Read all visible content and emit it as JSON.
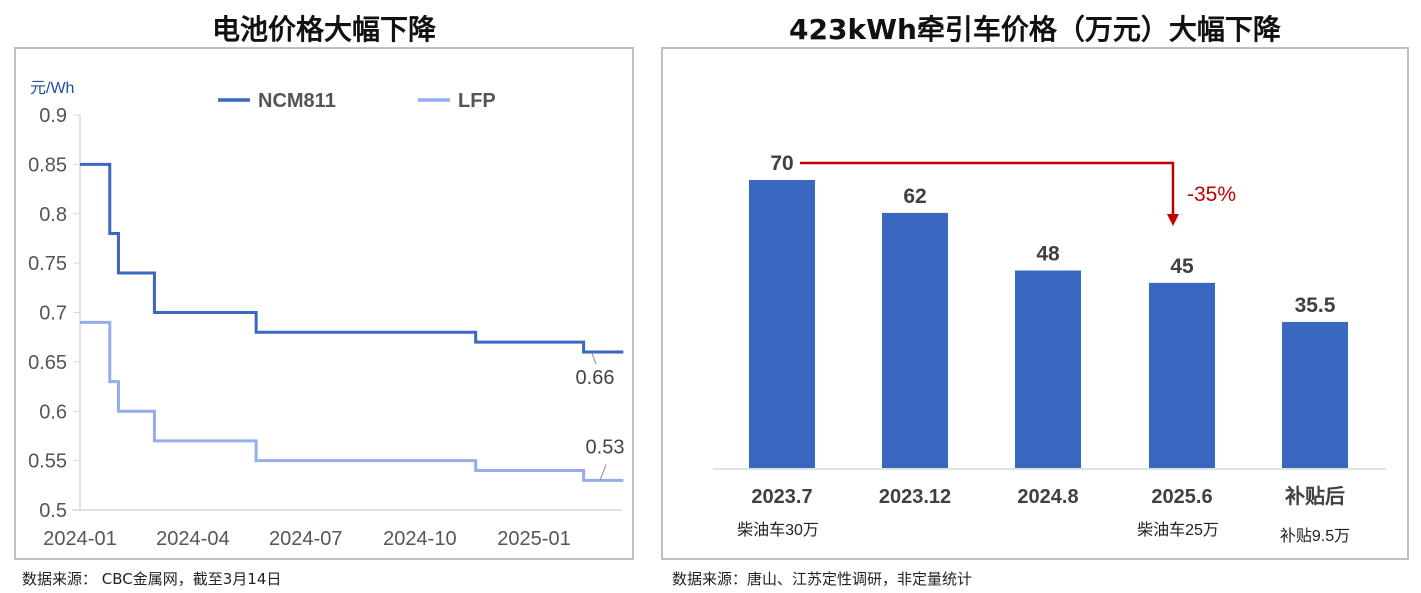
{
  "left": {
    "title": "电池价格大幅下降",
    "source": "数据来源： CBC金属网，截至3月14日"
  },
  "right": {
    "title": "423kWh牵引车价格（万元）大幅下降",
    "source": "数据来源：唐山、江苏定性调研，非定量统计"
  },
  "chart_data": [
    {
      "type": "line",
      "step": true,
      "ylabel": "元/Wh",
      "ylim": [
        0.5,
        0.9
      ],
      "yticks": [
        "0.9",
        "0.85",
        "0.8",
        "0.75",
        "0.7",
        "0.65",
        "0.6",
        "0.55",
        "0.5"
      ],
      "xticks": [
        "2024-01",
        "2024-04",
        "2024-07",
        "2024-10",
        "2025-01"
      ],
      "legend": "top",
      "colors": {
        "NCM811": "#3a67c0",
        "LFP": "#94adeb"
      },
      "series": [
        {
          "name": "NCM811",
          "points": [
            [
              "2024-01-01",
              0.85
            ],
            [
              "2024-01-25",
              0.78
            ],
            [
              "2024-02-01",
              0.74
            ],
            [
              "2024-03-01",
              0.7
            ],
            [
              "2024-05-22",
              0.68
            ],
            [
              "2024-11-15",
              0.67
            ],
            [
              "2025-02-10",
              0.66
            ],
            [
              "2025-03-14",
              0.66
            ]
          ],
          "end_label": "0.66"
        },
        {
          "name": "LFP",
          "points": [
            [
              "2024-01-01",
              0.69
            ],
            [
              "2024-01-25",
              0.63
            ],
            [
              "2024-02-01",
              0.6
            ],
            [
              "2024-03-01",
              0.57
            ],
            [
              "2024-05-22",
              0.55
            ],
            [
              "2024-11-15",
              0.54
            ],
            [
              "2025-02-10",
              0.53
            ],
            [
              "2025-03-14",
              0.53
            ]
          ],
          "end_label": "0.53"
        }
      ]
    },
    {
      "type": "bar",
      "title": "423kWh牵引车价格（万元）大幅下降",
      "categories": [
        "2023.7",
        "2023.12",
        "2024.8",
        "2025.6",
        "补贴后"
      ],
      "sublabels": [
        "柴油车30万",
        "",
        "",
        "柴油车25万",
        "补贴9.5万"
      ],
      "values": [
        70,
        62,
        48,
        45,
        35.5
      ],
      "value_labels": [
        "70",
        "62",
        "48",
        "45",
        "35.5"
      ],
      "bar_color": "#3a67c0",
      "annotation": {
        "text": "-35%",
        "from": "2023.7",
        "to": "2025.6",
        "color": "#c00000"
      }
    }
  ]
}
